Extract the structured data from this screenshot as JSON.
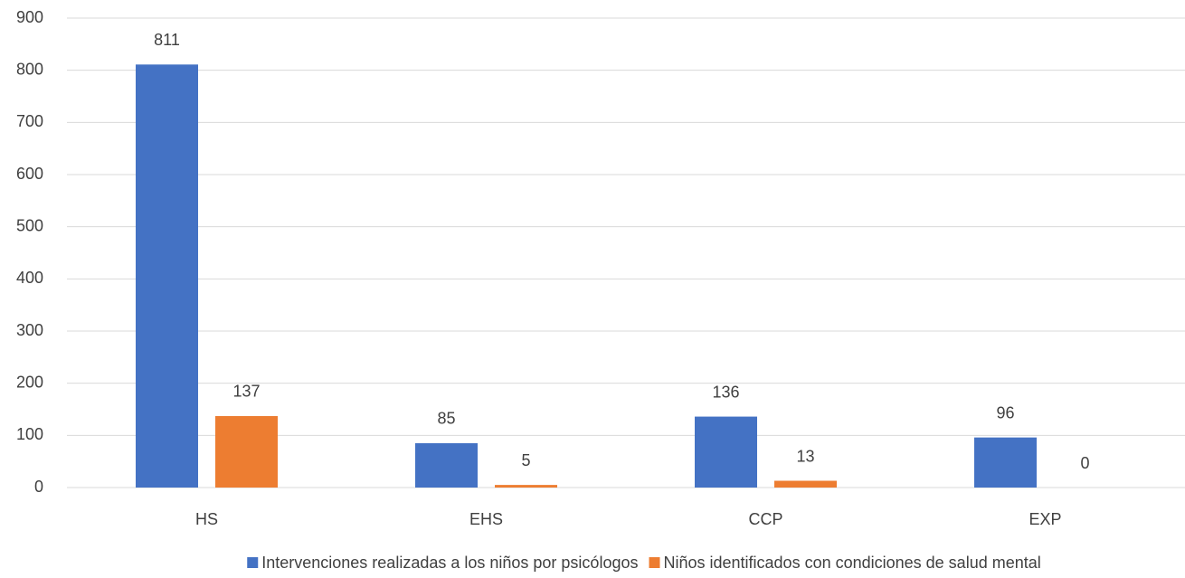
{
  "chart_data": {
    "type": "bar",
    "categories": [
      "HS",
      "EHS",
      "CCP",
      "EXP"
    ],
    "series": [
      {
        "name": "Intervenciones realizadas a los niños por psicólogos",
        "color": "#4472c4",
        "values": [
          811,
          85,
          136,
          96
        ]
      },
      {
        "name": "Niños identificados con condiciones de salud mental",
        "color": "#ed7d31",
        "values": [
          137,
          5,
          13,
          0
        ]
      }
    ],
    "ylim": [
      0,
      900
    ],
    "yticks": [
      0,
      100,
      200,
      300,
      400,
      500,
      600,
      700,
      800,
      900
    ],
    "grid": true,
    "legend": "bottom"
  }
}
